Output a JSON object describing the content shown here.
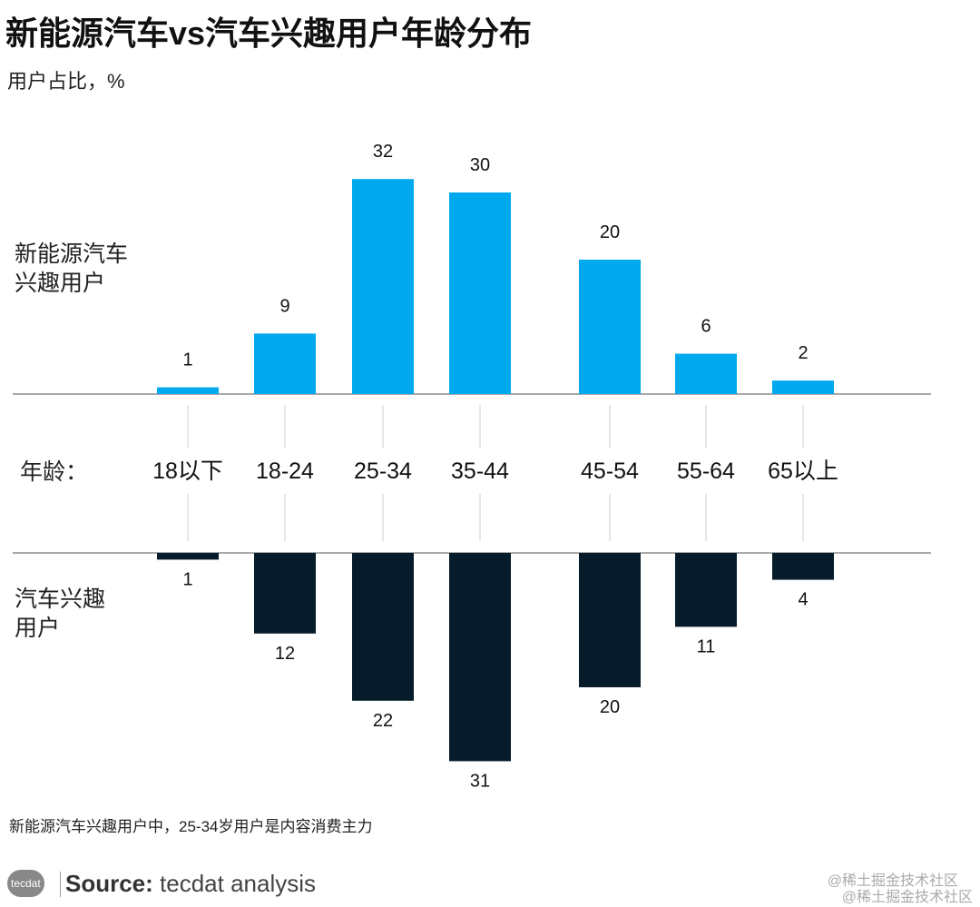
{
  "title": "新能源汽车vs汽车兴趣用户年龄分布",
  "subtitle": "用户占比，%",
  "chart_data": {
    "type": "bar",
    "title": "新能源汽车vs汽车兴趣用户年龄分布",
    "ylabel": "用户占比，%",
    "xlabel": "年龄：",
    "categories": [
      "18以下",
      "18-24",
      "25-34",
      "35-44",
      "45-54",
      "55-64",
      "65以上"
    ],
    "series": [
      {
        "name": "新能源汽车兴趣用户",
        "name_lines": [
          "新能源汽车",
          "兴趣用户"
        ],
        "values": [
          1,
          9,
          32,
          30,
          20,
          6,
          2
        ],
        "color": "#00a8ee",
        "direction": "up"
      },
      {
        "name": "汽车兴趣用户",
        "name_lines": [
          "汽车兴趣",
          "用户"
        ],
        "values": [
          1,
          12,
          22,
          31,
          20,
          11,
          4
        ],
        "color": "#061c2a",
        "direction": "down"
      }
    ]
  },
  "note": "新能源汽车兴趣用户中，25-34岁用户是内容消费主力",
  "source": {
    "label": "Source:",
    "text": " tecdat analysis",
    "logo": "tecdat"
  },
  "watermark": "@稀土掘金技术社区"
}
